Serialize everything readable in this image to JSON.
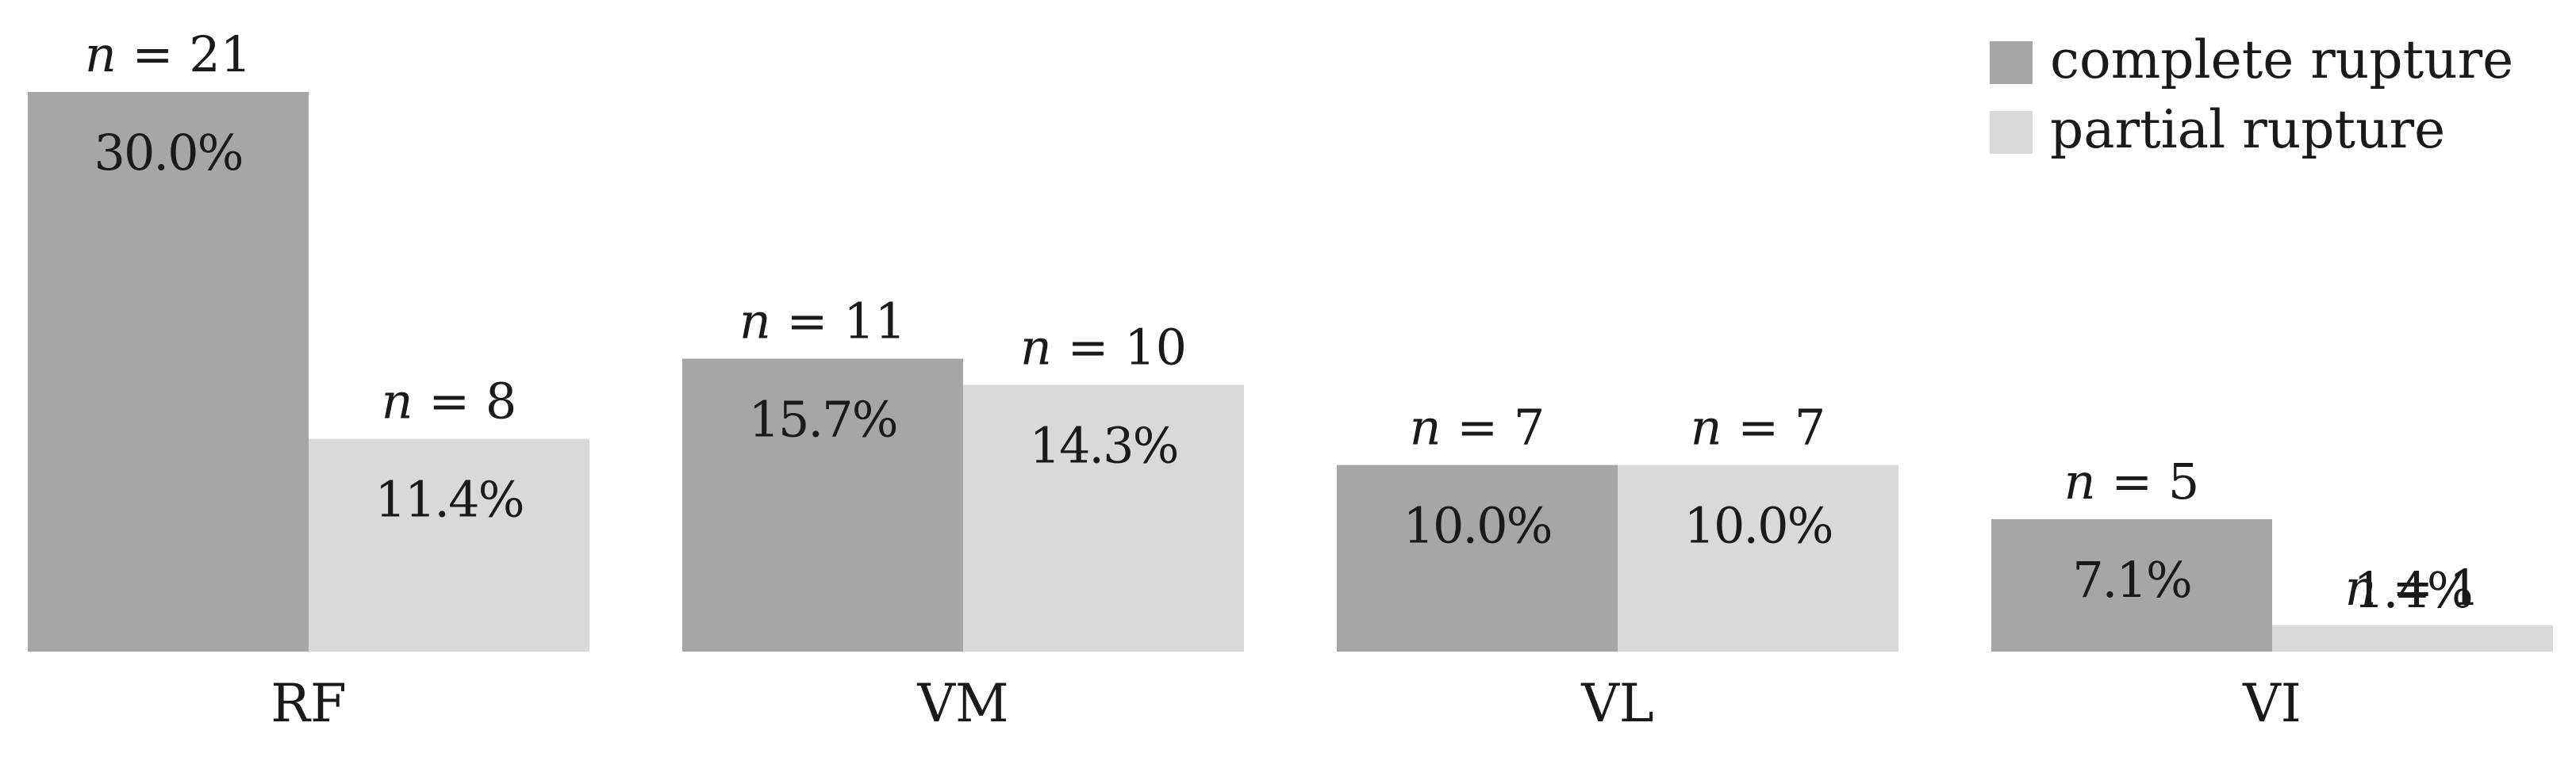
{
  "chart_data": {
    "type": "bar",
    "title": "",
    "xlabel": "",
    "ylabel": "",
    "ylim": [
      0,
      30.0
    ],
    "grid": false,
    "legend_position": "top-right",
    "categories": [
      "RF",
      "VM",
      "VL",
      "VI"
    ],
    "series": [
      {
        "name": "complete rupture",
        "color": "#a6a6a6",
        "values": [
          30.0,
          15.7,
          10.0,
          7.1
        ],
        "pct_labels": [
          "30.0%",
          "15.7%",
          "10.0%",
          "7.1%"
        ],
        "n_labels": [
          "21",
          "11",
          "7",
          "5"
        ]
      },
      {
        "name": "partial rupture",
        "color": "#d9d9d9",
        "values": [
          11.4,
          14.3,
          10.0,
          1.4
        ],
        "pct_labels": [
          "11.4%",
          "14.3%",
          "10.0%",
          "1.4%"
        ],
        "n_labels": [
          "8",
          "10",
          "7",
          "1"
        ]
      }
    ],
    "n_prefix": "n",
    "n_equals": " = "
  }
}
